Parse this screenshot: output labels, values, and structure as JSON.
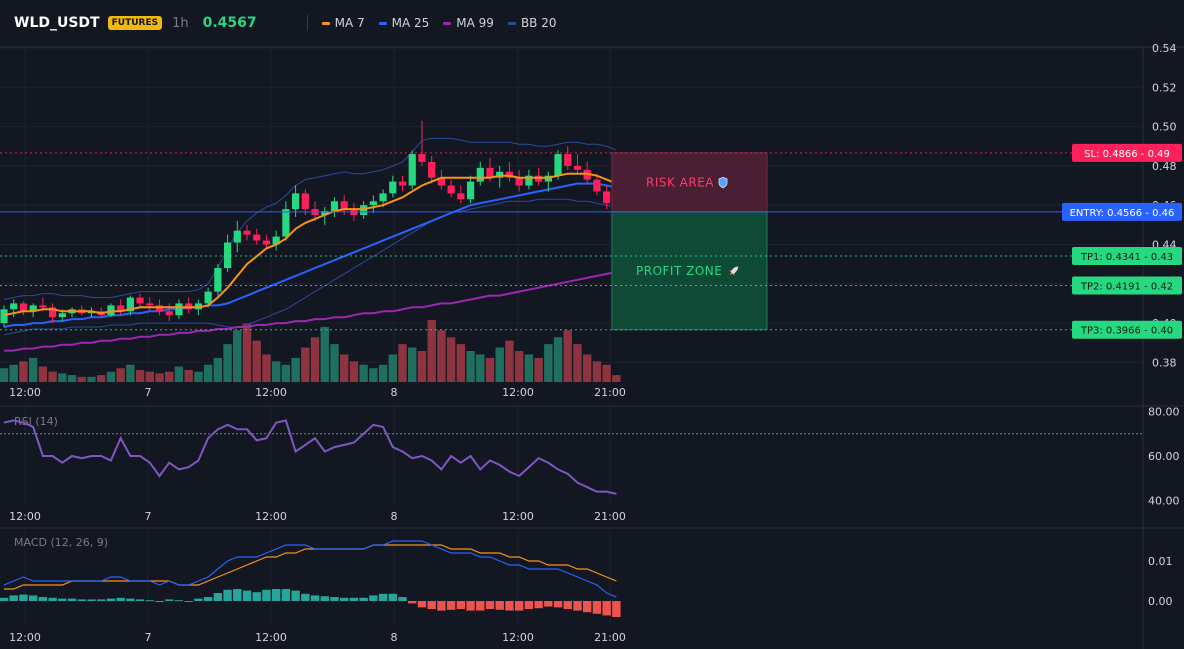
{
  "header": {
    "symbol": "WLD_USDT",
    "badge": "FUTURES",
    "timeframe": "1h",
    "price": "0.4567",
    "legend": [
      {
        "label": "MA 7",
        "color": "#f7931a"
      },
      {
        "label": "MA 25",
        "color": "#2962ff"
      },
      {
        "label": "MA 99",
        "color": "#9c27b0"
      },
      {
        "label": "BB 20",
        "color": "#2a4a9a"
      }
    ]
  },
  "colors": {
    "up": "#26a69a",
    "down": "#ef5350",
    "up_candle": "#26d980",
    "down_candle": "#ff1f5a",
    "sl": "#ff1f5a",
    "entry": "#2962ff",
    "tp": "#26d980"
  },
  "chart_data": [
    {
      "type": "candlestick",
      "pane": "price",
      "ylim": [
        0.37,
        0.54
      ],
      "y_ticks": [
        "0.38",
        "0.40",
        "0.42",
        "0.44",
        "0.46",
        "0.48",
        "0.50",
        "0.52",
        "0.54"
      ],
      "x_tick_labels": [
        "12:00",
        "7",
        "12:00",
        "8",
        "12:00",
        "21:00"
      ],
      "candles": [
        [
          0.4,
          0.409,
          0.398,
          0.407
        ],
        [
          0.407,
          0.412,
          0.403,
          0.41
        ],
        [
          0.41,
          0.411,
          0.404,
          0.406
        ],
        [
          0.406,
          0.41,
          0.403,
          0.409
        ],
        [
          0.409,
          0.413,
          0.406,
          0.408
        ],
        [
          0.408,
          0.41,
          0.4,
          0.403
        ],
        [
          0.403,
          0.407,
          0.401,
          0.405
        ],
        [
          0.405,
          0.408,
          0.403,
          0.407
        ],
        [
          0.407,
          0.409,
          0.404,
          0.405
        ],
        [
          0.405,
          0.408,
          0.403,
          0.406
        ],
        [
          0.406,
          0.408,
          0.403,
          0.404
        ],
        [
          0.404,
          0.41,
          0.403,
          0.409
        ],
        [
          0.409,
          0.412,
          0.404,
          0.406
        ],
        [
          0.406,
          0.414,
          0.404,
          0.413
        ],
        [
          0.413,
          0.415,
          0.408,
          0.41
        ],
        [
          0.41,
          0.413,
          0.406,
          0.409
        ],
        [
          0.409,
          0.412,
          0.404,
          0.406
        ],
        [
          0.406,
          0.41,
          0.401,
          0.404
        ],
        [
          0.404,
          0.412,
          0.402,
          0.41
        ],
        [
          0.41,
          0.413,
          0.405,
          0.407
        ],
        [
          0.407,
          0.412,
          0.404,
          0.41
        ],
        [
          0.41,
          0.418,
          0.408,
          0.416
        ],
        [
          0.416,
          0.43,
          0.414,
          0.428
        ],
        [
          0.428,
          0.445,
          0.426,
          0.441
        ],
        [
          0.441,
          0.452,
          0.436,
          0.447
        ],
        [
          0.447,
          0.45,
          0.442,
          0.445
        ],
        [
          0.445,
          0.448,
          0.44,
          0.442
        ],
        [
          0.442,
          0.445,
          0.438,
          0.44
        ],
        [
          0.44,
          0.447,
          0.437,
          0.444
        ],
        [
          0.444,
          0.462,
          0.442,
          0.458
        ],
        [
          0.458,
          0.47,
          0.454,
          0.466
        ],
        [
          0.466,
          0.468,
          0.455,
          0.458
        ],
        [
          0.458,
          0.462,
          0.452,
          0.455
        ],
        [
          0.455,
          0.459,
          0.45,
          0.457
        ],
        [
          0.457,
          0.464,
          0.454,
          0.462
        ],
        [
          0.462,
          0.465,
          0.455,
          0.458
        ],
        [
          0.458,
          0.461,
          0.452,
          0.455
        ],
        [
          0.455,
          0.462,
          0.453,
          0.46
        ],
        [
          0.46,
          0.465,
          0.456,
          0.462
        ],
        [
          0.462,
          0.468,
          0.459,
          0.466
        ],
        [
          0.466,
          0.475,
          0.464,
          0.472
        ],
        [
          0.472,
          0.475,
          0.467,
          0.47
        ],
        [
          0.47,
          0.488,
          0.468,
          0.486
        ],
        [
          0.486,
          0.503,
          0.48,
          0.482
        ],
        [
          0.482,
          0.485,
          0.471,
          0.474
        ],
        [
          0.474,
          0.478,
          0.468,
          0.47
        ],
        [
          0.47,
          0.473,
          0.464,
          0.466
        ],
        [
          0.466,
          0.47,
          0.461,
          0.463
        ],
        [
          0.463,
          0.475,
          0.461,
          0.472
        ],
        [
          0.472,
          0.482,
          0.47,
          0.479
        ],
        [
          0.479,
          0.484,
          0.472,
          0.474
        ],
        [
          0.474,
          0.48,
          0.469,
          0.477
        ],
        [
          0.477,
          0.482,
          0.472,
          0.474
        ],
        [
          0.474,
          0.478,
          0.467,
          0.47
        ],
        [
          0.47,
          0.478,
          0.468,
          0.475
        ],
        [
          0.475,
          0.479,
          0.47,
          0.472
        ],
        [
          0.472,
          0.477,
          0.467,
          0.475
        ],
        [
          0.475,
          0.488,
          0.473,
          0.486
        ],
        [
          0.486,
          0.49,
          0.478,
          0.48
        ],
        [
          0.48,
          0.486,
          0.476,
          0.478
        ],
        [
          0.478,
          0.482,
          0.471,
          0.473
        ],
        [
          0.473,
          0.476,
          0.465,
          0.467
        ],
        [
          0.467,
          0.47,
          0.458,
          0.461
        ],
        [
          0.461,
          0.464,
          0.456,
          0.457
        ]
      ],
      "ma7": [
        0.404,
        0.405,
        0.406,
        0.406,
        0.407,
        0.407,
        0.406,
        0.406,
        0.406,
        0.406,
        0.405,
        0.406,
        0.406,
        0.407,
        0.408,
        0.408,
        0.408,
        0.408,
        0.408,
        0.408,
        0.408,
        0.409,
        0.413,
        0.418,
        0.424,
        0.43,
        0.434,
        0.438,
        0.44,
        0.443,
        0.448,
        0.451,
        0.453,
        0.455,
        0.457,
        0.458,
        0.458,
        0.458,
        0.459,
        0.46,
        0.462,
        0.464,
        0.467,
        0.47,
        0.472,
        0.474,
        0.474,
        0.474,
        0.474,
        0.474,
        0.474,
        0.475,
        0.475,
        0.474,
        0.474,
        0.474,
        0.474,
        0.475,
        0.476,
        0.476,
        0.476,
        0.475,
        0.473,
        0.471
      ],
      "ma25": [
        0.398,
        0.399,
        0.399,
        0.4,
        0.4,
        0.401,
        0.401,
        0.402,
        0.402,
        0.403,
        0.403,
        0.404,
        0.404,
        0.405,
        0.405,
        0.406,
        0.406,
        0.407,
        0.407,
        0.408,
        0.408,
        0.409,
        0.409,
        0.41,
        0.412,
        0.414,
        0.416,
        0.418,
        0.42,
        0.422,
        0.424,
        0.426,
        0.428,
        0.43,
        0.432,
        0.434,
        0.436,
        0.438,
        0.44,
        0.442,
        0.444,
        0.446,
        0.448,
        0.45,
        0.452,
        0.454,
        0.456,
        0.458,
        0.46,
        0.461,
        0.462,
        0.463,
        0.464,
        0.465,
        0.466,
        0.467,
        0.468,
        0.469,
        0.47,
        0.471,
        0.471,
        0.471,
        0.47,
        0.469
      ],
      "ma99": [
        0.386,
        0.386,
        0.387,
        0.387,
        0.388,
        0.388,
        0.389,
        0.389,
        0.39,
        0.39,
        0.391,
        0.391,
        0.392,
        0.392,
        0.393,
        0.393,
        0.394,
        0.394,
        0.395,
        0.395,
        0.396,
        0.396,
        0.397,
        0.397,
        0.398,
        0.398,
        0.399,
        0.399,
        0.4,
        0.4,
        0.401,
        0.401,
        0.402,
        0.402,
        0.403,
        0.403,
        0.404,
        0.405,
        0.405,
        0.406,
        0.406,
        0.407,
        0.408,
        0.408,
        0.409,
        0.41,
        0.41,
        0.411,
        0.412,
        0.413,
        0.414,
        0.414,
        0.415,
        0.416,
        0.417,
        0.418,
        0.419,
        0.42,
        0.421,
        0.422,
        0.423,
        0.424,
        0.425,
        0.426
      ],
      "bb_upper": [
        0.412,
        0.413,
        0.414,
        0.414,
        0.415,
        0.415,
        0.414,
        0.414,
        0.414,
        0.413,
        0.413,
        0.413,
        0.414,
        0.415,
        0.416,
        0.416,
        0.416,
        0.416,
        0.416,
        0.416,
        0.417,
        0.42,
        0.428,
        0.438,
        0.446,
        0.452,
        0.456,
        0.459,
        0.461,
        0.465,
        0.47,
        0.473,
        0.474,
        0.475,
        0.476,
        0.477,
        0.476,
        0.476,
        0.477,
        0.478,
        0.48,
        0.482,
        0.487,
        0.493,
        0.494,
        0.494,
        0.494,
        0.493,
        0.492,
        0.492,
        0.492,
        0.492,
        0.492,
        0.491,
        0.491,
        0.49,
        0.49,
        0.491,
        0.492,
        0.492,
        0.491,
        0.491,
        0.49,
        0.488
      ],
      "bb_lower": [
        0.394,
        0.395,
        0.396,
        0.397,
        0.397,
        0.397,
        0.397,
        0.398,
        0.398,
        0.398,
        0.398,
        0.399,
        0.399,
        0.399,
        0.4,
        0.4,
        0.4,
        0.4,
        0.4,
        0.4,
        0.4,
        0.4,
        0.399,
        0.398,
        0.398,
        0.399,
        0.401,
        0.403,
        0.405,
        0.407,
        0.41,
        0.413,
        0.416,
        0.419,
        0.422,
        0.425,
        0.428,
        0.431,
        0.434,
        0.437,
        0.44,
        0.443,
        0.446,
        0.449,
        0.452,
        0.454,
        0.456,
        0.457,
        0.458,
        0.459,
        0.46,
        0.461,
        0.462,
        0.462,
        0.462,
        0.463,
        0.463,
        0.463,
        0.463,
        0.462,
        0.462,
        0.461,
        0.46,
        0.459
      ],
      "volume": [
        8,
        10,
        12,
        14,
        9,
        6,
        5,
        4,
        3,
        3,
        4,
        6,
        8,
        10,
        7,
        6,
        5,
        6,
        9,
        7,
        6,
        10,
        14,
        22,
        30,
        34,
        24,
        16,
        12,
        10,
        14,
        20,
        26,
        32,
        22,
        16,
        12,
        10,
        8,
        10,
        16,
        22,
        20,
        18,
        36,
        30,
        26,
        22,
        18,
        16,
        14,
        20,
        24,
        18,
        16,
        14,
        22,
        26,
        30,
        22,
        16,
        12,
        10,
        4
      ]
    },
    {
      "type": "line",
      "pane": "rsi",
      "label": "RSI (14)",
      "ylim": [
        38,
        82
      ],
      "y_ticks": [
        "80.00",
        "60.00",
        "40.00"
      ],
      "overbought": 70,
      "x_tick_labels": [
        "12:00",
        "7",
        "12:00",
        "8",
        "12:00",
        "21:00"
      ],
      "values": [
        75,
        76,
        75,
        73,
        60,
        60,
        57,
        60,
        59,
        60,
        60,
        58,
        68,
        60,
        60,
        57,
        51,
        57,
        54,
        55,
        58,
        68,
        72,
        74,
        72,
        72,
        67,
        68,
        75,
        76,
        62,
        65,
        68,
        62,
        64,
        65,
        66,
        70,
        74,
        73,
        64,
        62,
        59,
        60,
        58,
        54,
        60,
        57,
        60,
        54,
        58,
        56,
        53,
        51,
        55,
        59,
        57,
        54,
        52,
        48,
        46,
        44,
        44,
        43
      ]
    },
    {
      "type": "bar_line",
      "pane": "macd",
      "label": "MACD (12, 26, 9)",
      "ylim": [
        -0.006,
        0.018
      ],
      "y_ticks": [
        "0.01",
        "0.00"
      ],
      "x_tick_labels": [
        "12:00",
        "7",
        "12:00",
        "8",
        "12:00",
        "21:00"
      ],
      "macd": [
        0.004,
        0.005,
        0.006,
        0.005,
        0.005,
        0.005,
        0.005,
        0.005,
        0.005,
        0.005,
        0.005,
        0.006,
        0.006,
        0.005,
        0.005,
        0.005,
        0.004,
        0.005,
        0.004,
        0.004,
        0.005,
        0.006,
        0.008,
        0.01,
        0.011,
        0.011,
        0.011,
        0.012,
        0.013,
        0.014,
        0.014,
        0.014,
        0.013,
        0.013,
        0.013,
        0.013,
        0.013,
        0.013,
        0.014,
        0.014,
        0.015,
        0.015,
        0.015,
        0.015,
        0.014,
        0.013,
        0.012,
        0.012,
        0.012,
        0.011,
        0.011,
        0.01,
        0.009,
        0.009,
        0.008,
        0.008,
        0.008,
        0.008,
        0.007,
        0.006,
        0.005,
        0.004,
        0.002,
        0.001
      ],
      "signal": [
        0.003,
        0.003,
        0.004,
        0.004,
        0.004,
        0.004,
        0.004,
        0.005,
        0.005,
        0.005,
        0.005,
        0.005,
        0.005,
        0.005,
        0.005,
        0.005,
        0.005,
        0.005,
        0.004,
        0.004,
        0.004,
        0.005,
        0.006,
        0.007,
        0.008,
        0.009,
        0.01,
        0.011,
        0.011,
        0.012,
        0.012,
        0.013,
        0.013,
        0.013,
        0.013,
        0.013,
        0.013,
        0.013,
        0.014,
        0.014,
        0.014,
        0.014,
        0.014,
        0.014,
        0.014,
        0.014,
        0.013,
        0.013,
        0.013,
        0.012,
        0.012,
        0.012,
        0.011,
        0.011,
        0.01,
        0.01,
        0.009,
        0.009,
        0.009,
        0.008,
        0.008,
        0.007,
        0.006,
        0.005
      ],
      "hist": [
        0.0008,
        0.0014,
        0.0016,
        0.0014,
        0.001,
        0.0008,
        0.0006,
        0.0006,
        0.0004,
        0.0004,
        0.0004,
        0.0006,
        0.0008,
        0.0006,
        0.0004,
        0.0002,
        -0.0002,
        0.0004,
        0.0002,
        0.0,
        0.0006,
        0.001,
        0.002,
        0.0028,
        0.003,
        0.0026,
        0.0022,
        0.0028,
        0.003,
        0.003,
        0.0026,
        0.0018,
        0.0014,
        0.0012,
        0.001,
        0.0008,
        0.0008,
        0.0008,
        0.0014,
        0.0018,
        0.0018,
        0.001,
        -0.0006,
        -0.0016,
        -0.002,
        -0.0024,
        -0.0022,
        -0.002,
        -0.0024,
        -0.0024,
        -0.002,
        -0.0022,
        -0.0024,
        -0.0024,
        -0.002,
        -0.0018,
        -0.0014,
        -0.0016,
        -0.002,
        -0.0024,
        -0.0028,
        -0.0032,
        -0.0036,
        -0.004
      ]
    }
  ],
  "levels": {
    "sl": {
      "value": 0.4866,
      "label": "SL: 0.4866 - 0.49"
    },
    "entry": {
      "value": 0.4566,
      "label": "ENTRY: 0.4566 - 0.46"
    },
    "tp": [
      {
        "value": 0.4341,
        "label": "TP1: 0.4341 - 0.43"
      },
      {
        "value": 0.4191,
        "label": "TP2: 0.4191 - 0.42"
      },
      {
        "value": 0.3966,
        "label": "TP3: 0.3966 - 0.40"
      }
    ]
  },
  "zones": {
    "risk_label": "RISK AREA",
    "risk_icon": "shield-icon",
    "profit_label": "PROFIT ZONE",
    "profit_icon": "rocket-icon"
  }
}
